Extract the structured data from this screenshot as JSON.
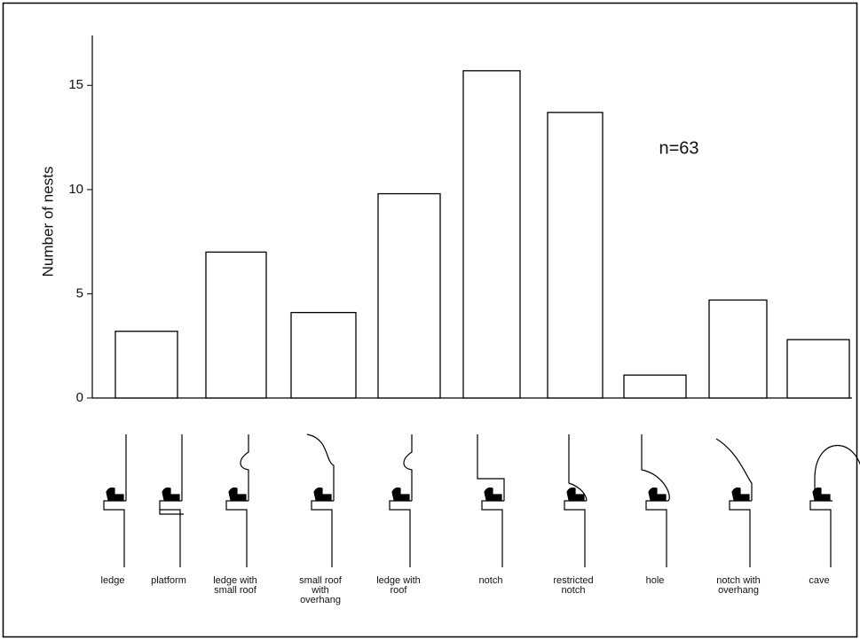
{
  "chart_data": {
    "type": "bar",
    "y_label": "Number of nests",
    "annotation": "n=63",
    "categories": [
      "ledge",
      "platform",
      "ledge with\nsmall roof",
      "small roof\nwith\noverhang",
      "ledge with\nroof",
      "notch",
      "restricted\nnotch",
      "hole",
      "notch with\noverhang",
      "cave"
    ],
    "values": [
      3.2,
      null,
      7.0,
      4.1,
      9.8,
      15.7,
      13.7,
      1.1,
      4.7,
      2.8
    ],
    "color": "#ffffff",
    "ylim": [
      0,
      16.5
    ],
    "yticks": [
      0,
      5,
      10,
      15
    ]
  }
}
